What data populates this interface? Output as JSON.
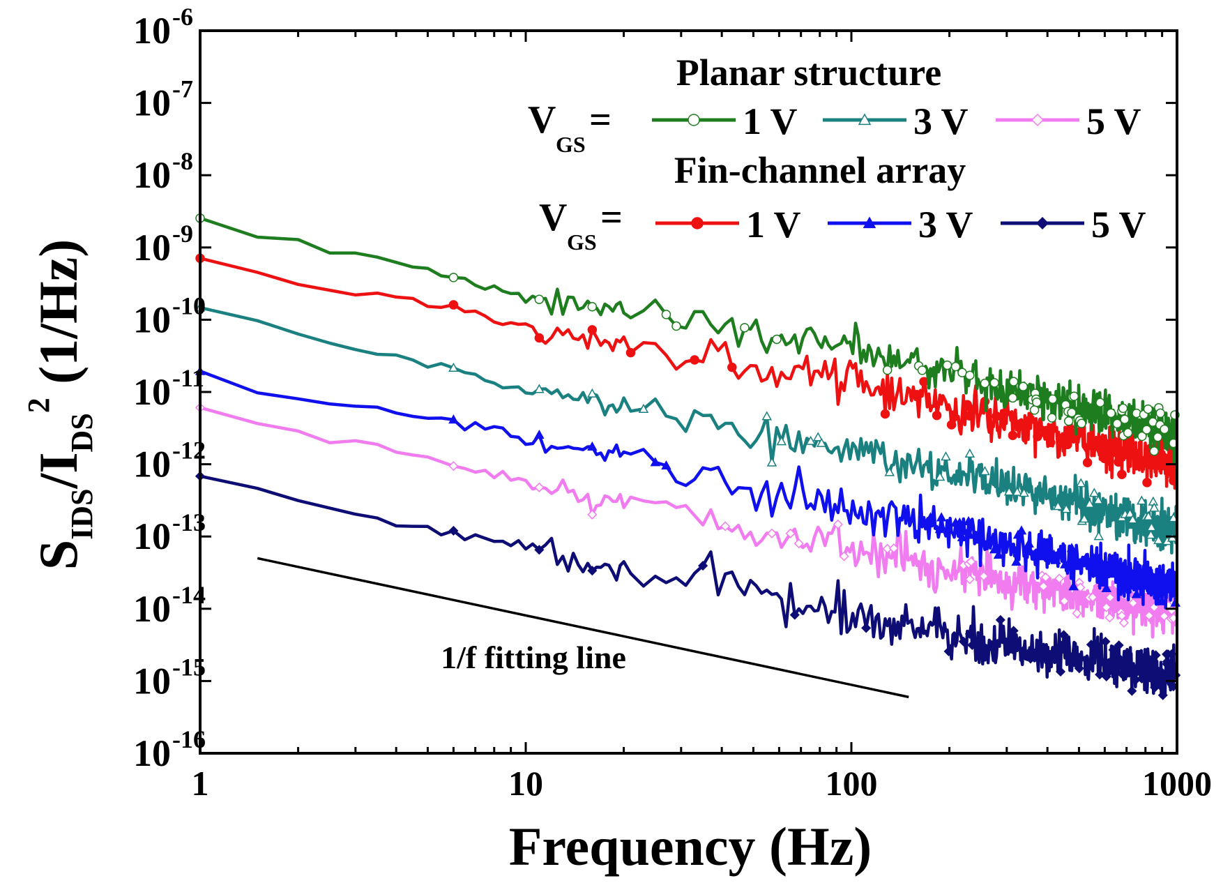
{
  "chart_data": {
    "type": "line",
    "xscale": "log",
    "yscale": "log",
    "xlim": [
      1,
      1000
    ],
    "ylim": [
      1e-16,
      1e-06
    ],
    "xlabel": "Frequency (Hz)",
    "ylabel_parts": {
      "s": "S",
      "s_sub": "IDS",
      "slash": "/I",
      "i_sub": "DS",
      "sup": "2",
      "unit": " (1/Hz)"
    },
    "x_ticks": [
      {
        "value": 1,
        "label": "1"
      },
      {
        "value": 10,
        "label": "10"
      },
      {
        "value": 100,
        "label": "100"
      },
      {
        "value": 1000,
        "label": "1000"
      }
    ],
    "y_ticks": [
      {
        "exp": -16,
        "label": "10",
        "sup": "-16"
      },
      {
        "exp": -15,
        "label": "10",
        "sup": "-15"
      },
      {
        "exp": -14,
        "label": "10",
        "sup": "-14"
      },
      {
        "exp": -13,
        "label": "10",
        "sup": "-13"
      },
      {
        "exp": -12,
        "label": "10",
        "sup": "-12"
      },
      {
        "exp": -11,
        "label": "10",
        "sup": "-11"
      },
      {
        "exp": -10,
        "label": "10",
        "sup": "-10"
      },
      {
        "exp": -9,
        "label": "10",
        "sup": "-9"
      },
      {
        "exp": -8,
        "label": "10",
        "sup": "-8"
      },
      {
        "exp": -7,
        "label": "10",
        "sup": "-7"
      },
      {
        "exp": -6,
        "label": "10",
        "sup": "-6"
      }
    ],
    "legend": {
      "planar_title": "Planar structure",
      "fin_title": "Fin-channel array",
      "vgs_label": "V",
      "vgs_sub": "GS",
      "vgs_eq": "="
    },
    "series": [
      {
        "id": "planar-1v",
        "group": "planar",
        "name": "1 V",
        "color": "#1e7d1e",
        "marker": "circle-open",
        "anchors": [
          [
            1,
            2.2e-09
          ],
          [
            2,
            1.1e-09
          ],
          [
            3,
            8e-10
          ],
          [
            6,
            3.8e-10
          ],
          [
            10,
            2e-10
          ],
          [
            30,
            1e-10
          ],
          [
            100,
            4e-11
          ],
          [
            300,
            1.2e-11
          ],
          [
            1000,
            2.5e-12
          ]
        ],
        "noise": 0.28
      },
      {
        "id": "planar-3v",
        "group": "planar",
        "name": "3 V",
        "color": "#1a8080",
        "marker": "triangle-open",
        "anchors": [
          [
            1,
            1.4e-10
          ],
          [
            2,
            6e-11
          ],
          [
            3,
            3.5e-11
          ],
          [
            6,
            2.2e-11
          ],
          [
            10,
            1e-11
          ],
          [
            30,
            5e-12
          ],
          [
            100,
            1.5e-12
          ],
          [
            300,
            5e-13
          ],
          [
            1000,
            1.2e-13
          ]
        ],
        "noise": 0.28
      },
      {
        "id": "planar-5v",
        "group": "planar",
        "name": "5 V",
        "color": "#f07cf0",
        "marker": "diamond-open",
        "anchors": [
          [
            1,
            5.5e-12
          ],
          [
            2,
            2.6e-12
          ],
          [
            3,
            1.8e-12
          ],
          [
            6,
            1e-12
          ],
          [
            10,
            5.5e-13
          ],
          [
            30,
            2e-13
          ],
          [
            100,
            7e-14
          ],
          [
            300,
            2.5e-14
          ],
          [
            1000,
            8e-15
          ]
        ],
        "noise": 0.3
      },
      {
        "id": "fin-1v",
        "group": "fin",
        "name": "1 V",
        "color": "#ee1111",
        "marker": "circle-filled",
        "anchors": [
          [
            1,
            8e-10
          ],
          [
            2,
            3.2e-10
          ],
          [
            3,
            2.2e-10
          ],
          [
            6,
            1.5e-10
          ],
          [
            10,
            8e-11
          ],
          [
            30,
            3e-11
          ],
          [
            100,
            1.5e-11
          ],
          [
            300,
            4e-12
          ],
          [
            1000,
            1e-12
          ]
        ],
        "noise": 0.3
      },
      {
        "id": "fin-3v",
        "group": "fin",
        "name": "3 V",
        "color": "#1010ee",
        "marker": "triangle-filled",
        "anchors": [
          [
            1,
            1.8e-11
          ],
          [
            2,
            8e-12
          ],
          [
            3,
            6e-12
          ],
          [
            6,
            4e-12
          ],
          [
            10,
            2.2e-12
          ],
          [
            30,
            8e-13
          ],
          [
            100,
            2.5e-13
          ],
          [
            300,
            8e-14
          ],
          [
            1000,
            2e-14
          ]
        ],
        "noise": 0.3
      },
      {
        "id": "fin-5v",
        "group": "fin",
        "name": "5 V",
        "color": "#0d0d75",
        "marker": "diamond-filled",
        "anchors": [
          [
            1,
            6e-13
          ],
          [
            2,
            3.5e-13
          ],
          [
            3,
            1.8e-13
          ],
          [
            6,
            1.2e-13
          ],
          [
            10,
            7e-14
          ],
          [
            30,
            2.5e-14
          ],
          [
            100,
            8e-15
          ],
          [
            300,
            3e-15
          ],
          [
            1000,
            1.2e-15
          ]
        ],
        "noise": 0.32
      }
    ],
    "fit_line": {
      "label": "1/f fitting line",
      "x": [
        1.5,
        150
      ],
      "y": [
        5e-14,
        6e-16
      ]
    }
  }
}
